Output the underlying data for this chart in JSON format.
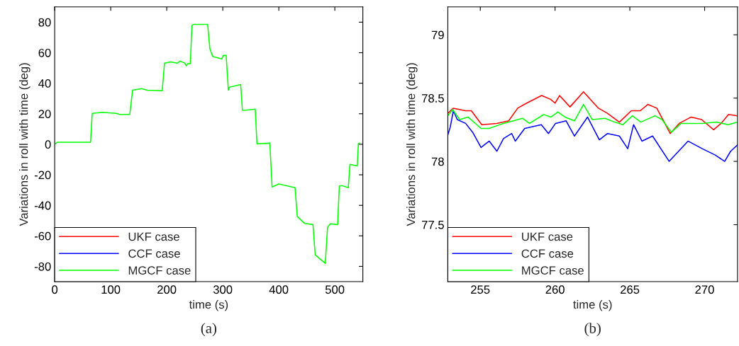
{
  "chart_data": [
    {
      "type": "line",
      "xlabel": "time (s)",
      "ylabel": "Variations in roll with time (deg)",
      "annotations": [
        "(a)"
      ],
      "x": [
        0,
        5,
        64,
        67,
        85,
        110,
        116,
        134,
        139,
        155,
        165,
        192,
        196,
        207,
        219,
        224,
        232,
        235,
        237,
        242,
        245,
        248,
        273,
        277,
        282,
        298,
        301,
        306,
        310,
        312,
        332,
        335,
        341,
        358,
        361,
        381,
        384,
        388,
        400,
        429,
        433,
        446,
        461,
        465,
        483,
        487,
        492,
        505,
        508,
        513,
        524,
        527,
        540,
        542,
        544
      ],
      "series": [
        {
          "name": "UKF case",
          "color": "#ff0000",
          "values": [
            null,
            null,
            null,
            null,
            null,
            null,
            null,
            null,
            null,
            null,
            null,
            null,
            null,
            null,
            null,
            null,
            null,
            null,
            null,
            null,
            null,
            null,
            null,
            null,
            null,
            null,
            null,
            null,
            null,
            null,
            null,
            null,
            null,
            null,
            null,
            null,
            null,
            null,
            null,
            null,
            null,
            null,
            null,
            null,
            null,
            null,
            null,
            null,
            null,
            null,
            null,
            null,
            null,
            null,
            null
          ]
        },
        {
          "name": "CCF case",
          "color": "#0000ff",
          "values": [
            null,
            null,
            null,
            null,
            null,
            null,
            null,
            null,
            null,
            null,
            null,
            null,
            null,
            null,
            null,
            null,
            null,
            null,
            null,
            null,
            null,
            null,
            null,
            null,
            null,
            null,
            null,
            null,
            null,
            null,
            null,
            null,
            null,
            null,
            null,
            null,
            null,
            null,
            null,
            null,
            null,
            null,
            null,
            null,
            null,
            null,
            null,
            null,
            null,
            null,
            null,
            null,
            null,
            null,
            null
          ]
        },
        {
          "name": "MGCF case",
          "color": "#00ff00",
          "values": [
            0.1,
            1.3,
            1.3,
            20.2,
            20.9,
            20.2,
            19.5,
            19.5,
            35.4,
            36.5,
            35.4,
            35.1,
            53.2,
            54,
            53.2,
            54.5,
            53.2,
            51.4,
            52.8,
            52.8,
            78,
            78.5,
            78.5,
            62.5,
            57.6,
            55.9,
            58.2,
            58.3,
            35.4,
            37.4,
            39.1,
            22.3,
            22.3,
            23,
            0.3,
            0.6,
            0.9,
            -28,
            -26,
            -28.4,
            -47.4,
            -51.8,
            -52.6,
            -72.5,
            -78,
            -54.4,
            -52.1,
            -52.6,
            -27.4,
            -27.1,
            -28.4,
            -13.1,
            -14.2,
            0.5,
            0.8
          ]
        }
      ],
      "xlim": [
        0,
        550
      ],
      "ylim": [
        -90,
        90
      ],
      "xticks": [
        0,
        100,
        200,
        300,
        400,
        500
      ],
      "yticks": [
        -80,
        -60,
        -40,
        -20,
        0,
        20,
        40,
        60,
        80
      ],
      "legend": "bottom left",
      "grid": false
    },
    {
      "type": "line",
      "xlabel": "time (s)",
      "ylabel": "Variations in roll with time (deg)",
      "annotations": [
        "(b)"
      ],
      "series": [
        {
          "name": "UKF case",
          "color": "#ff0000",
          "x": [
            252.83,
            253.2,
            254.0,
            254.4,
            255.1,
            256.1,
            256.9,
            257.5,
            258.1,
            259.1,
            259.7,
            260.0,
            260.3,
            261.0,
            261.9,
            262.9,
            263.5,
            264.3,
            265.1,
            265.7,
            266.2,
            266.8,
            267.7,
            268.3,
            269.1,
            269.8,
            270.6,
            271.1,
            271.6,
            272.2
          ],
          "values": [
            78.38,
            78.42,
            78.4,
            78.4,
            78.29,
            78.3,
            78.32,
            78.42,
            78.46,
            78.52,
            78.49,
            78.46,
            78.52,
            78.43,
            78.55,
            78.42,
            78.38,
            78.31,
            78.4,
            78.4,
            78.45,
            78.42,
            78.22,
            78.3,
            78.35,
            78.33,
            78.25,
            78.3,
            78.37,
            78.36
          ]
        },
        {
          "name": "CCF case",
          "color": "#0000ff",
          "x": [
            252.83,
            252.99,
            253.2,
            253.46,
            254.02,
            254.49,
            255.05,
            255.6,
            256.11,
            256.55,
            257.1,
            257.34,
            257.97,
            259.08,
            259.56,
            260.03,
            260.74,
            261.3,
            262.17,
            262.96,
            263.51,
            264.3,
            264.86,
            265.25,
            265.81,
            266.52,
            267.63,
            268.26,
            268.89,
            269.84,
            270.71,
            271.34,
            271.74,
            272.2
          ],
          "values": [
            78.21,
            78.27,
            78.4,
            78.33,
            78.3,
            78.23,
            78.11,
            78.16,
            78.08,
            78.18,
            78.22,
            78.16,
            78.26,
            78.29,
            78.22,
            78.3,
            78.32,
            78.2,
            78.35,
            78.17,
            78.22,
            78.2,
            78.1,
            78.29,
            78.16,
            78.2,
            78.0,
            78.08,
            78.16,
            78.1,
            78.05,
            78.0,
            78.08,
            78.13
          ]
        },
        {
          "name": "MGCF case",
          "color": "#00ff00",
          "x": [
            252.83,
            253.15,
            253.62,
            254.18,
            255.05,
            255.6,
            256.55,
            257.82,
            258.29,
            259.24,
            259.72,
            260.19,
            260.66,
            261.3,
            261.9,
            262.49,
            263.35,
            263.99,
            264.54,
            265.17,
            265.73,
            266.68,
            267.15,
            267.78,
            268.42,
            269.84,
            270.79,
            271.58,
            272.2
          ],
          "values": [
            78.36,
            78.41,
            78.33,
            78.35,
            78.26,
            78.26,
            78.3,
            78.34,
            78.3,
            78.37,
            78.35,
            78.39,
            78.35,
            78.32,
            78.45,
            78.33,
            78.34,
            78.31,
            78.29,
            78.36,
            78.31,
            78.36,
            78.33,
            78.23,
            78.3,
            78.3,
            78.31,
            78.29,
            78.31
          ]
        }
      ],
      "xlim": [
        252.83,
        272.2
      ],
      "ylim": [
        77.05,
        79.22
      ],
      "xticks": [
        255,
        260,
        265,
        270
      ],
      "yticks": [
        77.5,
        78,
        78.5,
        79
      ],
      "legend": "bottom left",
      "grid": false
    }
  ]
}
